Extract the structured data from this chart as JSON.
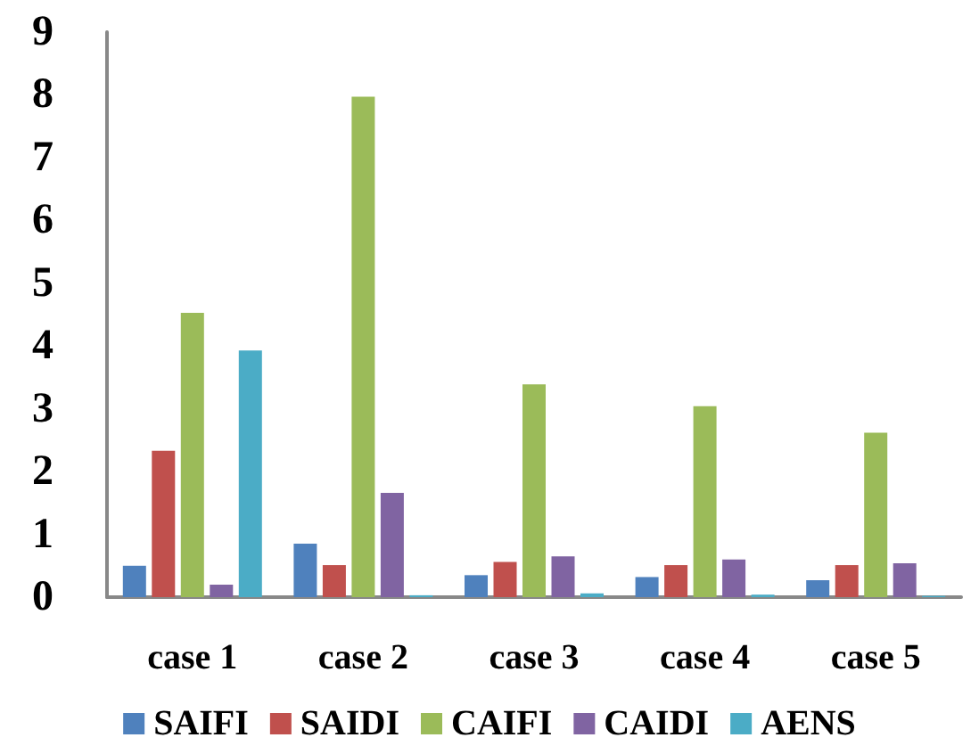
{
  "chart_data": {
    "type": "bar",
    "categories": [
      "case 1",
      "case 2",
      "case 3",
      "case 4",
      "case 5"
    ],
    "series": [
      {
        "name": "SAIFI",
        "color": "#4f81bd",
        "values": [
          0.5,
          0.85,
          0.35,
          0.32,
          0.27
        ]
      },
      {
        "name": "SAIDI",
        "color": "#c0504d",
        "values": [
          2.33,
          0.51,
          0.56,
          0.51,
          0.51
        ]
      },
      {
        "name": "CAIFI",
        "color": "#9bbb59",
        "values": [
          4.53,
          7.97,
          3.39,
          3.04,
          2.62
        ]
      },
      {
        "name": "CAIDI",
        "color": "#8064a2",
        "values": [
          0.2,
          1.66,
          0.65,
          0.6,
          0.54
        ]
      },
      {
        "name": "AENS",
        "color": "#4bacc6",
        "values": [
          3.93,
          0.03,
          0.06,
          0.04,
          0.02
        ]
      }
    ],
    "ylim": [
      0,
      9
    ],
    "yticks": [
      0,
      1,
      2,
      3,
      4,
      5,
      6,
      7,
      8,
      9
    ],
    "grid": false,
    "legend": "bottom"
  }
}
